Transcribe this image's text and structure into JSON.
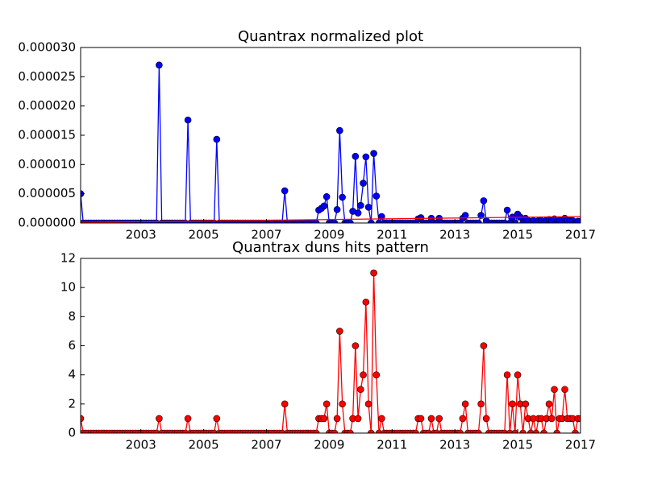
{
  "chart_data": [
    {
      "type": "line",
      "title": "Quantrax normalized plot",
      "x": [
        2001.083,
        2001.167,
        2001.25,
        2001.333,
        2001.417,
        2001.5,
        2001.583,
        2001.667,
        2001.75,
        2001.833,
        2001.917,
        2002,
        2002.083,
        2002.167,
        2002.25,
        2002.333,
        2002.417,
        2002.5,
        2002.583,
        2002.667,
        2002.75,
        2002.833,
        2002.917,
        2003,
        2003.083,
        2003.167,
        2003.25,
        2003.333,
        2003.417,
        2003.5,
        2003.583,
        2003.667,
        2003.75,
        2003.833,
        2003.917,
        2004,
        2004.083,
        2004.167,
        2004.25,
        2004.333,
        2004.417,
        2004.5,
        2004.583,
        2004.667,
        2004.75,
        2004.833,
        2004.917,
        2005,
        2005.083,
        2005.167,
        2005.25,
        2005.333,
        2005.417,
        2005.5,
        2005.583,
        2005.667,
        2005.75,
        2005.833,
        2005.917,
        2006,
        2006.083,
        2006.167,
        2006.25,
        2006.333,
        2006.417,
        2006.5,
        2006.583,
        2006.667,
        2006.75,
        2006.833,
        2006.917,
        2007,
        2007.083,
        2007.167,
        2007.25,
        2007.333,
        2007.417,
        2007.5,
        2007.583,
        2007.667,
        2007.75,
        2007.833,
        2007.917,
        2008,
        2008.083,
        2008.167,
        2008.25,
        2008.333,
        2008.417,
        2008.5,
        2008.583,
        2008.667,
        2008.75,
        2008.833,
        2008.917,
        2009,
        2009.083,
        2009.167,
        2009.25,
        2009.333,
        2009.417,
        2009.5,
        2009.583,
        2009.667,
        2009.75,
        2009.833,
        2009.917,
        2010,
        2010.083,
        2010.167,
        2010.25,
        2010.333,
        2010.417,
        2010.5,
        2010.583,
        2010.667,
        2010.75,
        2010.833,
        2010.917,
        2011,
        2011.083,
        2011.167,
        2011.25,
        2011.333,
        2011.417,
        2011.5,
        2011.583,
        2011.667,
        2011.75,
        2011.833,
        2011.917,
        2012,
        2012.083,
        2012.167,
        2012.25,
        2012.333,
        2012.417,
        2012.5,
        2012.583,
        2012.667,
        2012.75,
        2012.833,
        2012.917,
        2013,
        2013.083,
        2013.167,
        2013.25,
        2013.333,
        2013.417,
        2013.5,
        2013.583,
        2013.667,
        2013.75,
        2013.833,
        2013.917,
        2014,
        2014.083,
        2014.167,
        2014.25,
        2014.333,
        2014.417,
        2014.5,
        2014.583,
        2014.667,
        2014.75,
        2014.833,
        2014.917,
        2015,
        2015.083,
        2015.167,
        2015.25,
        2015.333,
        2015.417,
        2015.5,
        2015.583,
        2015.667,
        2015.75,
        2015.833,
        2015.917,
        2016,
        2016.083,
        2016.167,
        2016.25,
        2016.333,
        2016.417,
        2016.5,
        2016.583,
        2016.667,
        2016.75,
        2016.833,
        2016.917,
        2017
      ],
      "series": [
        {
          "color": "#0000ff",
          "marker": true,
          "values": [
            5e-06,
            0,
            0,
            0,
            0,
            0,
            0,
            0,
            0,
            0,
            0,
            0,
            0,
            0,
            0,
            0,
            0,
            0,
            0,
            0,
            0,
            0,
            0,
            0,
            0,
            0,
            0,
            0,
            0,
            0,
            2.7e-05,
            0,
            0,
            0,
            0,
            0,
            0,
            0,
            0,
            0,
            0,
            1.76e-05,
            0,
            0,
            0,
            0,
            0,
            0,
            0,
            0,
            0,
            0,
            1.43e-05,
            0,
            0,
            0,
            0,
            0,
            0,
            0,
            0,
            0,
            0,
            0,
            0,
            0,
            0,
            0,
            0,
            0,
            0,
            0,
            0,
            0,
            0,
            0,
            0,
            0,
            5.5e-06,
            0,
            0,
            0,
            0,
            0,
            0,
            0,
            0,
            0,
            0,
            0,
            0,
            2.2e-06,
            2.5e-06,
            2.9e-06,
            4.5e-06,
            0,
            0,
            0,
            2.3e-06,
            1.58e-05,
            4.4e-06,
            0,
            0,
            0,
            2e-06,
            1.14e-05,
            1.7e-06,
            3e-06,
            6.8e-06,
            1.13e-05,
            2.7e-06,
            0,
            1.19e-05,
            4.6e-06,
            0,
            1.1e-06,
            0,
            0,
            0,
            0,
            0,
            0,
            0,
            0,
            0,
            0,
            0,
            0,
            0,
            7e-07,
            9e-07,
            0,
            0,
            0,
            8e-07,
            0,
            0,
            8e-07,
            0,
            0,
            0,
            0,
            0,
            0,
            0,
            0,
            8e-07,
            1.3e-06,
            0,
            0,
            0,
            0,
            0,
            1.3e-06,
            3.8e-06,
            4e-07,
            0,
            0,
            0,
            0,
            0,
            0,
            0,
            2.2e-06,
            0,
            1e-06,
            0,
            1.5e-06,
            1e-06,
            0,
            8e-07,
            4e-07,
            0,
            4e-07,
            0,
            4e-07,
            4e-07,
            0,
            5e-07,
            6e-07,
            4e-07,
            7e-07,
            0,
            4e-07,
            4e-07,
            8e-07,
            4e-07,
            4e-07,
            4e-07,
            0,
            3e-07,
            3e-07
          ]
        },
        {
          "color": "#ff0000",
          "x": [
            2001.083,
            2017
          ],
          "values": [
            1e-07,
            1.1e-06
          ]
        }
      ],
      "xlim": [
        2001.083,
        2017
      ],
      "xticks": [
        2003,
        2005,
        2007,
        2009,
        2011,
        2013,
        2015,
        2017
      ],
      "ylim": [
        0,
        3e-05
      ],
      "yticks": [
        {
          "value": 0,
          "label": "0.000000"
        },
        {
          "value": 5e-06,
          "label": "0.000005"
        },
        {
          "value": 1e-05,
          "label": "0.000010"
        },
        {
          "value": 1.5e-05,
          "label": "0.000015"
        },
        {
          "value": 2e-05,
          "label": "0.000020"
        },
        {
          "value": 2.5e-05,
          "label": "0.000025"
        },
        {
          "value": 3e-05,
          "label": "0.000030"
        }
      ],
      "grid": false
    },
    {
      "type": "line",
      "title": "Quantrax duns hits pattern",
      "x": [
        2001.083,
        2001.167,
        2001.25,
        2001.333,
        2001.417,
        2001.5,
        2001.583,
        2001.667,
        2001.75,
        2001.833,
        2001.917,
        2002,
        2002.083,
        2002.167,
        2002.25,
        2002.333,
        2002.417,
        2002.5,
        2002.583,
        2002.667,
        2002.75,
        2002.833,
        2002.917,
        2003,
        2003.083,
        2003.167,
        2003.25,
        2003.333,
        2003.417,
        2003.5,
        2003.583,
        2003.667,
        2003.75,
        2003.833,
        2003.917,
        2004,
        2004.083,
        2004.167,
        2004.25,
        2004.333,
        2004.417,
        2004.5,
        2004.583,
        2004.667,
        2004.75,
        2004.833,
        2004.917,
        2005,
        2005.083,
        2005.167,
        2005.25,
        2005.333,
        2005.417,
        2005.5,
        2005.583,
        2005.667,
        2005.75,
        2005.833,
        2005.917,
        2006,
        2006.083,
        2006.167,
        2006.25,
        2006.333,
        2006.417,
        2006.5,
        2006.583,
        2006.667,
        2006.75,
        2006.833,
        2006.917,
        2007,
        2007.083,
        2007.167,
        2007.25,
        2007.333,
        2007.417,
        2007.5,
        2007.583,
        2007.667,
        2007.75,
        2007.833,
        2007.917,
        2008,
        2008.083,
        2008.167,
        2008.25,
        2008.333,
        2008.417,
        2008.5,
        2008.583,
        2008.667,
        2008.75,
        2008.833,
        2008.917,
        2009,
        2009.083,
        2009.167,
        2009.25,
        2009.333,
        2009.417,
        2009.5,
        2009.583,
        2009.667,
        2009.75,
        2009.833,
        2009.917,
        2010,
        2010.083,
        2010.167,
        2010.25,
        2010.333,
        2010.417,
        2010.5,
        2010.583,
        2010.667,
        2010.75,
        2010.833,
        2010.917,
        2011,
        2011.083,
        2011.167,
        2011.25,
        2011.333,
        2011.417,
        2011.5,
        2011.583,
        2011.667,
        2011.75,
        2011.833,
        2011.917,
        2012,
        2012.083,
        2012.167,
        2012.25,
        2012.333,
        2012.417,
        2012.5,
        2012.583,
        2012.667,
        2012.75,
        2012.833,
        2012.917,
        2013,
        2013.083,
        2013.167,
        2013.25,
        2013.333,
        2013.417,
        2013.5,
        2013.583,
        2013.667,
        2013.75,
        2013.833,
        2013.917,
        2014,
        2014.083,
        2014.167,
        2014.25,
        2014.333,
        2014.417,
        2014.5,
        2014.583,
        2014.667,
        2014.75,
        2014.833,
        2014.917,
        2015,
        2015.083,
        2015.167,
        2015.25,
        2015.333,
        2015.417,
        2015.5,
        2015.583,
        2015.667,
        2015.75,
        2015.833,
        2015.917,
        2016,
        2016.083,
        2016.167,
        2016.25,
        2016.333,
        2016.417,
        2016.5,
        2016.583,
        2016.667,
        2016.75,
        2016.833,
        2016.917,
        2017
      ],
      "series": [
        {
          "color": "#ff0000",
          "marker": true,
          "values": [
            1,
            0,
            0,
            0,
            0,
            0,
            0,
            0,
            0,
            0,
            0,
            0,
            0,
            0,
            0,
            0,
            0,
            0,
            0,
            0,
            0,
            0,
            0,
            0,
            0,
            0,
            0,
            0,
            0,
            0,
            1,
            0,
            0,
            0,
            0,
            0,
            0,
            0,
            0,
            0,
            0,
            1,
            0,
            0,
            0,
            0,
            0,
            0,
            0,
            0,
            0,
            0,
            1,
            0,
            0,
            0,
            0,
            0,
            0,
            0,
            0,
            0,
            0,
            0,
            0,
            0,
            0,
            0,
            0,
            0,
            0,
            0,
            0,
            0,
            0,
            0,
            0,
            0,
            2,
            0,
            0,
            0,
            0,
            0,
            0,
            0,
            0,
            0,
            0,
            0,
            0,
            1,
            1,
            1,
            2,
            0,
            0,
            0,
            1,
            7,
            2,
            0,
            0,
            0,
            1,
            6,
            1,
            3,
            4,
            9,
            2,
            0,
            11,
            4,
            0,
            1,
            0,
            0,
            0,
            0,
            0,
            0,
            0,
            0,
            0,
            0,
            0,
            0,
            0,
            1,
            1,
            0,
            0,
            0,
            1,
            0,
            0,
            1,
            0,
            0,
            0,
            0,
            0,
            0,
            0,
            0,
            1,
            2,
            0,
            0,
            0,
            0,
            0,
            2,
            6,
            1,
            0,
            0,
            0,
            0,
            0,
            0,
            0,
            4,
            0,
            2,
            0,
            4,
            2,
            0,
            2,
            1,
            0,
            1,
            0,
            1,
            1,
            0,
            1,
            2,
            1,
            3,
            0,
            1,
            1,
            3,
            1,
            1,
            1,
            0,
            1,
            1
          ]
        }
      ],
      "xlim": [
        2001.083,
        2017
      ],
      "xticks": [
        2003,
        2005,
        2007,
        2009,
        2011,
        2013,
        2015,
        2017
      ],
      "ylim": [
        0,
        12
      ],
      "yticks": [
        0,
        2,
        4,
        6,
        8,
        10,
        12
      ],
      "grid": false
    }
  ]
}
